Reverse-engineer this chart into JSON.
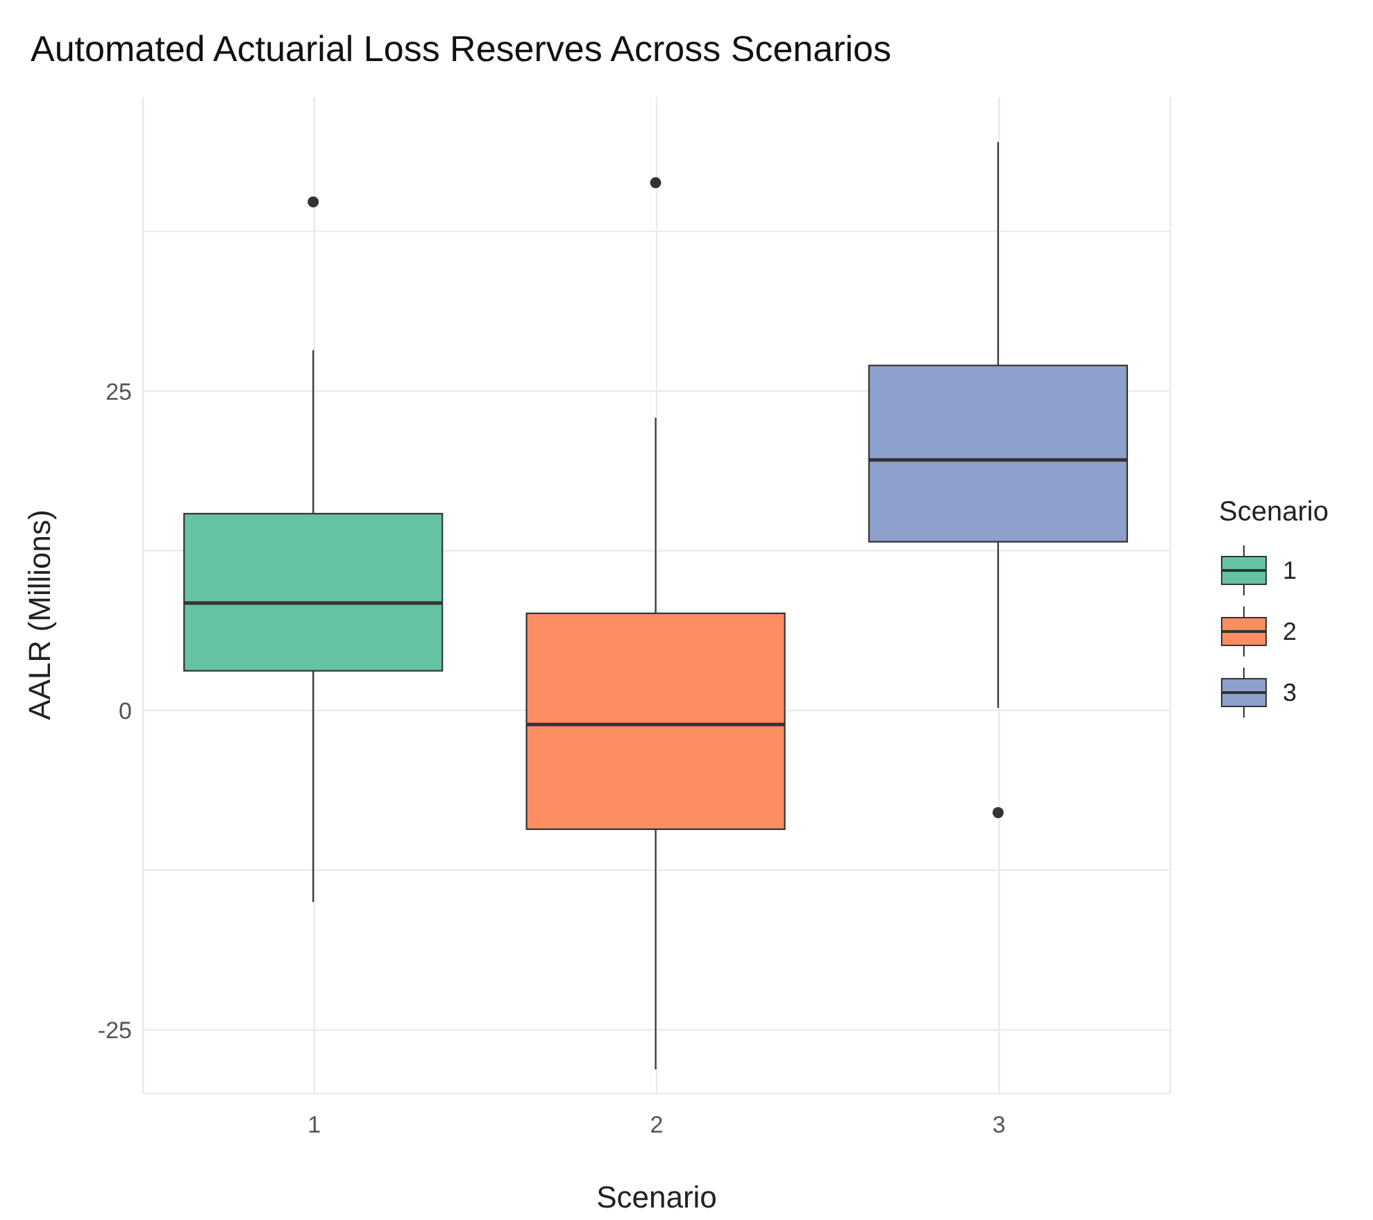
{
  "chart_data": {
    "type": "box",
    "title": "Automated Actuarial Loss Reserves Across Scenarios",
    "xlabel": "Scenario",
    "ylabel": "AALR (Millions)",
    "legend_title": "Scenario",
    "categories": [
      "1",
      "2",
      "3"
    ],
    "series": [
      {
        "name": "1",
        "color": "#66c2a5",
        "boxes": [
          {
            "low": -15,
            "q1": 3.1,
            "median": 8.4,
            "q3": 15.4,
            "high": 28.2,
            "outliers": [
              39.8
            ]
          },
          null,
          null
        ]
      },
      {
        "name": "2",
        "color": "#fc8d62",
        "boxes": [
          null,
          {
            "low": -28.1,
            "q1": -9.3,
            "median": -1.1,
            "q3": 7.6,
            "high": 22.9,
            "outliers": [
              41.3
            ]
          },
          null
        ]
      },
      {
        "name": "3",
        "color": "#8da0cb",
        "boxes": [
          null,
          null,
          {
            "low": 0.2,
            "q1": 13.2,
            "median": 19.6,
            "q3": 27,
            "high": 44.5,
            "outliers": [
              -8
            ]
          }
        ]
      }
    ],
    "ylim": [
      -30,
      48
    ],
    "yticks": [
      -25,
      {
        "value": -12.5,
        "label": null
      },
      0,
      {
        "value": 12.5,
        "label": null
      },
      25,
      {
        "value": 37.5,
        "label": null
      }
    ],
    "grid": true,
    "legend": "right"
  }
}
